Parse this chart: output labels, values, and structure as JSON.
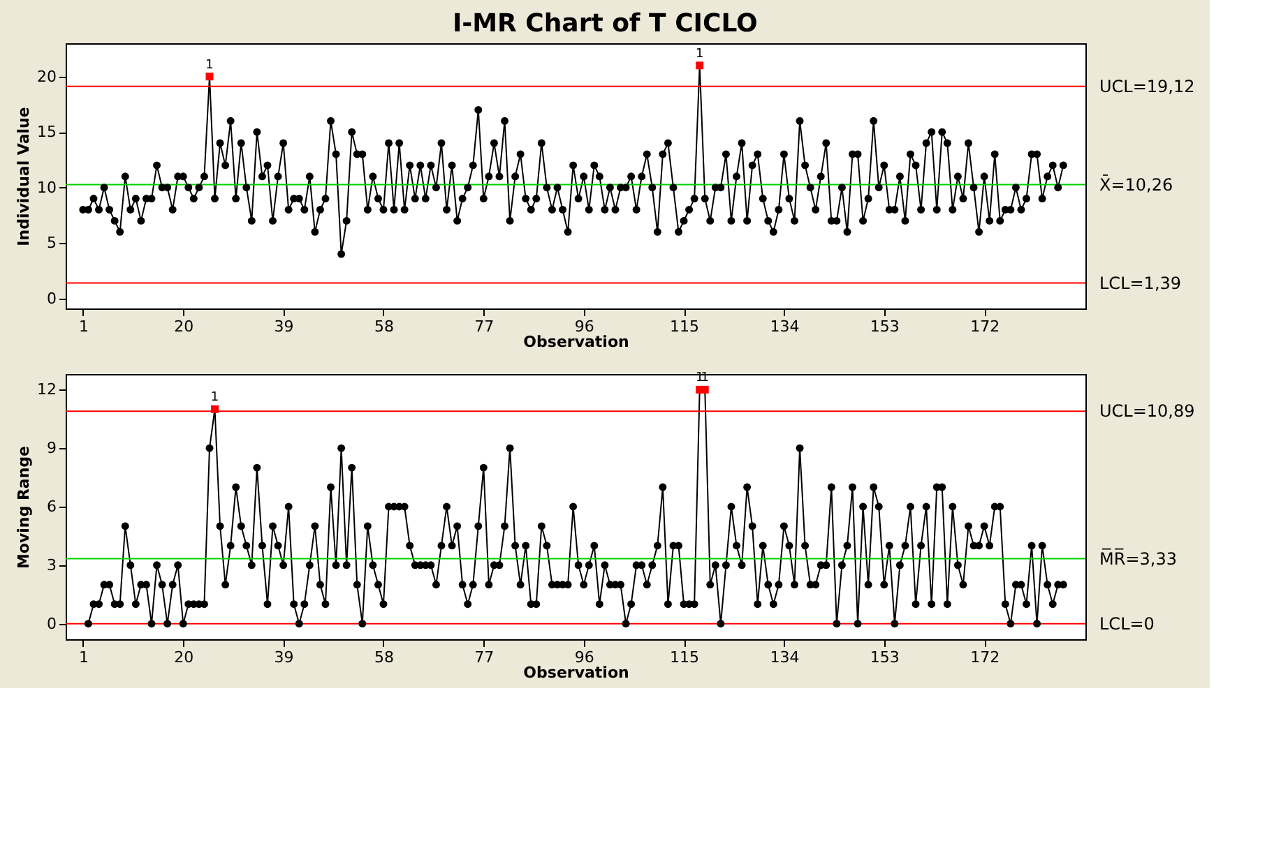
{
  "chart_data": [
    {
      "type": "line",
      "title": "I-MR Chart of T CICLO",
      "xlabel": "Observation",
      "ylabel": "Individual Value",
      "marker": "circle",
      "line_style": "solid",
      "xlim": [
        -2.3,
        191.2
      ],
      "xticks": [
        1,
        20,
        39,
        58,
        77,
        96,
        115,
        134,
        153,
        172
      ],
      "ylim": [
        -0.9,
        23
      ],
      "yticks": [
        0,
        5,
        10,
        15,
        20
      ],
      "x": [
        1,
        2,
        3,
        4,
        5,
        6,
        7,
        8,
        9,
        10,
        11,
        12,
        13,
        14,
        15,
        16,
        17,
        18,
        19,
        20,
        21,
        22,
        23,
        24,
        25,
        26,
        27,
        28,
        29,
        30,
        31,
        32,
        33,
        34,
        35,
        36,
        37,
        38,
        39,
        40,
        41,
        42,
        43,
        44,
        45,
        46,
        47,
        48,
        49,
        50,
        51,
        52,
        53,
        54,
        55,
        56,
        57,
        58,
        59,
        60,
        61,
        62,
        63,
        64,
        65,
        66,
        67,
        68,
        69,
        70,
        71,
        72,
        73,
        74,
        75,
        76,
        77,
        78,
        79,
        80,
        81,
        82,
        83,
        84,
        85,
        86,
        87,
        88,
        89,
        90,
        91,
        92,
        93,
        94,
        95,
        96,
        97,
        98,
        99,
        100,
        101,
        102,
        103,
        104,
        105,
        106,
        107,
        108,
        109,
        110,
        111,
        112,
        113,
        114,
        115,
        116,
        117,
        118,
        119,
        120,
        121,
        122,
        123,
        124,
        125,
        126,
        127,
        128,
        129,
        130,
        131,
        132,
        133,
        134,
        135,
        136,
        137,
        138,
        139,
        140,
        141,
        142,
        143,
        144,
        145,
        146,
        147,
        148,
        149,
        150,
        151,
        152,
        153,
        154,
        155,
        156,
        157,
        158,
        159,
        160,
        161,
        162,
        163,
        164,
        165,
        166,
        167,
        168,
        169,
        170,
        171,
        172,
        173,
        174,
        175,
        176,
        177,
        178,
        179,
        180,
        181,
        182,
        183,
        184,
        185,
        186,
        187
      ],
      "series": [
        {
          "color": "#000000",
          "values": [
            8,
            8,
            9,
            8,
            10,
            8,
            7,
            6,
            11,
            8,
            9,
            7,
            9,
            9,
            12,
            10,
            10,
            8,
            11,
            11,
            10,
            9,
            10,
            11,
            20,
            9,
            14,
            12,
            16,
            9,
            14,
            10,
            7,
            15,
            11,
            12,
            7,
            11,
            14,
            8,
            9,
            9,
            8,
            11,
            6,
            8,
            9,
            16,
            13,
            4,
            7,
            15,
            13,
            13,
            8,
            11,
            9,
            8,
            14,
            8,
            14,
            8,
            12,
            9,
            12,
            9,
            12,
            10,
            14,
            8,
            12,
            7,
            9,
            10,
            12,
            17,
            9,
            11,
            14,
            11,
            16,
            7,
            11,
            13,
            9,
            8,
            9,
            14,
            10,
            8,
            10,
            8,
            6,
            12,
            9,
            11,
            8,
            12,
            11,
            8,
            10,
            8,
            10,
            10,
            11,
            8,
            11,
            13,
            10,
            6,
            13,
            14,
            10,
            6,
            7,
            8,
            9,
            21,
            9,
            7,
            10,
            10,
            13,
            7,
            11,
            14,
            7,
            12,
            13,
            9,
            7,
            6,
            8,
            13,
            9,
            7,
            16,
            12,
            10,
            8,
            11,
            14,
            7,
            7,
            10,
            6,
            13,
            13,
            7,
            9,
            16,
            10,
            12,
            8,
            8,
            11,
            7,
            13,
            12,
            8,
            14,
            15,
            8,
            15,
            14,
            8,
            11,
            9,
            14,
            10,
            6,
            11,
            7,
            13,
            7,
            8,
            8,
            10,
            8,
            9,
            13,
            13,
            9,
            11,
            12,
            10,
            12
          ],
          "colors": [
            "#000000",
            "#000000",
            "#000000",
            "#000000",
            "#000000",
            "#000000",
            "#000000",
            "#000000",
            "#000000",
            "#000000",
            "#000000",
            "#000000",
            "#000000",
            "#000000",
            "#000000",
            "#000000",
            "#000000",
            "#000000",
            "#000000",
            "#000000",
            "#000000",
            "#000000",
            "#000000",
            "#000000",
            "#ff0000",
            "#000000",
            "#000000",
            "#000000",
            "#000000",
            "#000000",
            "#000000",
            "#000000",
            "#000000",
            "#000000",
            "#000000",
            "#000000",
            "#000000",
            "#000000",
            "#000000",
            "#000000",
            "#000000",
            "#000000",
            "#000000",
            "#000000",
            "#000000",
            "#000000",
            "#000000",
            "#000000",
            "#000000",
            "#000000",
            "#000000",
            "#000000",
            "#000000",
            "#000000",
            "#000000",
            "#000000",
            "#000000",
            "#000000",
            "#000000",
            "#000000",
            "#000000",
            "#000000",
            "#000000",
            "#000000",
            "#000000",
            "#000000",
            "#000000",
            "#000000",
            "#000000",
            "#000000",
            "#000000",
            "#000000",
            "#000000",
            "#000000",
            "#000000",
            "#000000",
            "#000000",
            "#000000",
            "#000000",
            "#000000",
            "#000000",
            "#000000",
            "#000000",
            "#000000",
            "#000000",
            "#000000",
            "#000000",
            "#000000",
            "#000000",
            "#000000",
            "#000000",
            "#000000",
            "#000000",
            "#000000",
            "#000000",
            "#000000",
            "#000000",
            "#000000",
            "#000000",
            "#000000",
            "#000000",
            "#000000",
            "#000000",
            "#000000",
            "#000000",
            "#000000",
            "#000000",
            "#000000",
            "#000000",
            "#000000",
            "#000000",
            "#000000",
            "#000000",
            "#000000",
            "#000000",
            "#000000",
            "#000000",
            "#ff0000",
            "#000000",
            "#000000",
            "#000000",
            "#000000",
            "#000000",
            "#000000",
            "#000000",
            "#000000",
            "#000000",
            "#000000",
            "#000000",
            "#000000",
            "#000000",
            "#000000",
            "#000000",
            "#000000",
            "#000000",
            "#000000",
            "#000000",
            "#000000",
            "#000000",
            "#000000",
            "#000000",
            "#000000",
            "#000000",
            "#000000",
            "#000000",
            "#000000",
            "#000000",
            "#000000",
            "#000000",
            "#000000",
            "#000000",
            "#000000",
            "#000000",
            "#000000",
            "#000000",
            "#000000",
            "#000000",
            "#000000",
            "#000000",
            "#000000",
            "#000000",
            "#000000",
            "#000000",
            "#000000",
            "#000000",
            "#000000",
            "#000000",
            "#000000",
            "#000000",
            "#000000",
            "#000000",
            "#000000",
            "#000000",
            "#000000",
            "#000000",
            "#000000",
            "#000000",
            "#000000",
            "#000000",
            "#000000",
            "#000000",
            "#000000",
            "#000000",
            "#000000",
            "#000000",
            "#000000",
            "#000000"
          ]
        }
      ],
      "ref_lines": [
        {
          "axis": "y",
          "value": 19.12,
          "label": "UCL=19,12",
          "color": "#ff0000"
        },
        {
          "axis": "y",
          "value": 10.26,
          "label": "X̄=10,26",
          "color": "#00d000"
        },
        {
          "axis": "y",
          "value": 1.39,
          "label": "LCL=1,39",
          "color": "#ff0000"
        }
      ],
      "annotations": [
        {
          "text": "1",
          "x": 25,
          "y": 20
        },
        {
          "text": "1",
          "x": 118,
          "y": 21
        }
      ]
    },
    {
      "type": "line",
      "xlabel": "Observation",
      "ylabel": "Moving Range",
      "marker": "circle",
      "line_style": "solid",
      "xlim": [
        -2.3,
        191.2
      ],
      "xticks": [
        1,
        20,
        39,
        58,
        77,
        96,
        115,
        134,
        153,
        172
      ],
      "ylim": [
        -0.8,
        12.8
      ],
      "yticks": [
        0,
        3,
        6,
        9,
        12
      ],
      "series": [
        {
          "color": "#000000",
          "x": [
            2,
            3,
            4,
            5,
            6,
            7,
            8,
            9,
            10,
            11,
            12,
            13,
            14,
            15,
            16,
            17,
            18,
            19,
            20,
            21,
            22,
            23,
            24,
            25,
            26,
            27,
            28,
            29,
            30,
            31,
            32,
            33,
            34,
            35,
            36,
            37,
            38,
            39,
            40,
            41,
            42,
            43,
            44,
            45,
            46,
            47,
            48,
            49,
            50,
            51,
            52,
            53,
            54,
            55,
            56,
            57,
            58,
            59,
            60,
            61,
            62,
            63,
            64,
            65,
            66,
            67,
            68,
            69,
            70,
            71,
            72,
            73,
            74,
            75,
            76,
            77,
            78,
            79,
            80,
            81,
            82,
            83,
            84,
            85,
            86,
            87,
            88,
            89,
            90,
            91,
            92,
            93,
            94,
            95,
            96,
            97,
            98,
            99,
            100,
            101,
            102,
            103,
            104,
            105,
            106,
            107,
            108,
            109,
            110,
            111,
            112,
            113,
            114,
            115,
            116,
            117,
            118,
            119,
            120,
            121,
            122,
            123,
            124,
            125,
            126,
            127,
            128,
            129,
            130,
            131,
            132,
            133,
            134,
            135,
            136,
            137,
            138,
            139,
            140,
            141,
            142,
            143,
            144,
            145,
            146,
            147,
            148,
            149,
            150,
            151,
            152,
            153,
            154,
            155,
            156,
            157,
            158,
            159,
            160,
            161,
            162,
            163,
            164,
            165,
            166,
            167,
            168,
            169,
            170,
            171,
            172,
            173,
            174,
            175,
            176,
            177,
            178,
            179,
            180,
            181,
            182,
            183,
            184,
            185,
            186,
            187
          ],
          "values": [
            0,
            1,
            1,
            2,
            2,
            1,
            1,
            5,
            3,
            1,
            2,
            2,
            0,
            3,
            2,
            0,
            2,
            3,
            0,
            1,
            1,
            1,
            1,
            9,
            11,
            5,
            2,
            4,
            7,
            5,
            4,
            3,
            8,
            4,
            1,
            5,
            4,
            3,
            6,
            1,
            0,
            1,
            3,
            5,
            2,
            1,
            7,
            3,
            9,
            3,
            8,
            2,
            0,
            5,
            3,
            2,
            1,
            6,
            6,
            6,
            6,
            4,
            3,
            3,
            3,
            3,
            2,
            4,
            6,
            4,
            5,
            2,
            1,
            2,
            5,
            8,
            2,
            3,
            3,
            5,
            9,
            4,
            2,
            4,
            1,
            1,
            5,
            4,
            2,
            2,
            2,
            2,
            6,
            3,
            2,
            3,
            4,
            1,
            3,
            2,
            2,
            2,
            0,
            1,
            3,
            3,
            2,
            3,
            4,
            7,
            1,
            4,
            4,
            1,
            1,
            1,
            12,
            12,
            2,
            3,
            0,
            3,
            6,
            4,
            3,
            7,
            5,
            1,
            4,
            2,
            1,
            2,
            5,
            4,
            2,
            9,
            4,
            2,
            2,
            3,
            3,
            7,
            0,
            3,
            4,
            7,
            0,
            6,
            2,
            7,
            6,
            2,
            4,
            0,
            3,
            4,
            6,
            1,
            4,
            6,
            1,
            7,
            7,
            1,
            6,
            3,
            2,
            5,
            4,
            4,
            5,
            4,
            6,
            6,
            1,
            0,
            2,
            2,
            1,
            4,
            0,
            4,
            2,
            1,
            2,
            2
          ],
          "colors": [
            "#000000",
            "#000000",
            "#000000",
            "#000000",
            "#000000",
            "#000000",
            "#000000",
            "#000000",
            "#000000",
            "#000000",
            "#000000",
            "#000000",
            "#000000",
            "#000000",
            "#000000",
            "#000000",
            "#000000",
            "#000000",
            "#000000",
            "#000000",
            "#000000",
            "#000000",
            "#000000",
            "#000000",
            "#ff0000",
            "#000000",
            "#000000",
            "#000000",
            "#000000",
            "#000000",
            "#000000",
            "#000000",
            "#000000",
            "#000000",
            "#000000",
            "#000000",
            "#000000",
            "#000000",
            "#000000",
            "#000000",
            "#000000",
            "#000000",
            "#000000",
            "#000000",
            "#000000",
            "#000000",
            "#000000",
            "#000000",
            "#000000",
            "#000000",
            "#000000",
            "#000000",
            "#000000",
            "#000000",
            "#000000",
            "#000000",
            "#000000",
            "#000000",
            "#000000",
            "#000000",
            "#000000",
            "#000000",
            "#000000",
            "#000000",
            "#000000",
            "#000000",
            "#000000",
            "#000000",
            "#000000",
            "#000000",
            "#000000",
            "#000000",
            "#000000",
            "#000000",
            "#000000",
            "#000000",
            "#000000",
            "#000000",
            "#000000",
            "#000000",
            "#000000",
            "#000000",
            "#000000",
            "#000000",
            "#000000",
            "#000000",
            "#000000",
            "#000000",
            "#000000",
            "#000000",
            "#000000",
            "#000000",
            "#000000",
            "#000000",
            "#000000",
            "#000000",
            "#000000",
            "#000000",
            "#000000",
            "#000000",
            "#000000",
            "#000000",
            "#000000",
            "#000000",
            "#000000",
            "#000000",
            "#000000",
            "#000000",
            "#000000",
            "#000000",
            "#000000",
            "#000000",
            "#000000",
            "#000000",
            "#000000",
            "#000000",
            "#ff0000",
            "#ff0000",
            "#000000",
            "#000000",
            "#000000",
            "#000000",
            "#000000",
            "#000000",
            "#000000",
            "#000000",
            "#000000",
            "#000000",
            "#000000",
            "#000000",
            "#000000",
            "#000000",
            "#000000",
            "#000000",
            "#000000",
            "#000000",
            "#000000",
            "#000000",
            "#000000",
            "#000000",
            "#000000",
            "#000000",
            "#000000",
            "#000000",
            "#000000",
            "#000000",
            "#000000",
            "#000000",
            "#000000",
            "#000000",
            "#000000",
            "#000000",
            "#000000",
            "#000000",
            "#000000",
            "#000000",
            "#000000",
            "#000000",
            "#000000",
            "#000000",
            "#000000",
            "#000000",
            "#000000",
            "#000000",
            "#000000",
            "#000000",
            "#000000",
            "#000000",
            "#000000",
            "#000000",
            "#000000",
            "#000000",
            "#000000",
            "#000000",
            "#000000",
            "#000000",
            "#000000",
            "#000000",
            "#000000",
            "#000000",
            "#000000",
            "#000000",
            "#000000",
            "#000000",
            "#000000",
            "#000000"
          ]
        }
      ],
      "ref_lines": [
        {
          "axis": "y",
          "value": 10.89,
          "label": "UCL=10,89",
          "color": "#ff0000"
        },
        {
          "axis": "y",
          "value": 3.33,
          "label": "M̅R̅=3,33",
          "color": "#00d000"
        },
        {
          "axis": "y",
          "value": 0,
          "label": "LCL=0",
          "color": "#ff0000"
        }
      ],
      "annotations": [
        {
          "text": "1",
          "x": 26,
          "y": 11
        },
        {
          "text": "1",
          "x": 118,
          "y": 12
        },
        {
          "text": "1",
          "x": 119,
          "y": 12
        }
      ]
    }
  ]
}
